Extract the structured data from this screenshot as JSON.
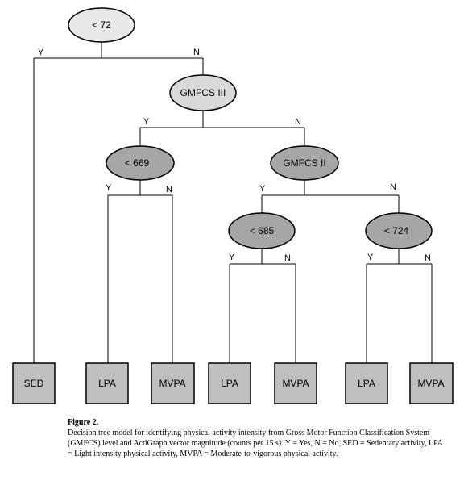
{
  "diagram": {
    "type": "decision-tree",
    "colors": {
      "root_fill": "#e8e8e8",
      "lvl1_fill": "#d9d9d9",
      "inner_fill": "#a6a6a6",
      "leaf_fill": "#bfbfbf",
      "stroke": "#000000"
    },
    "nodes": {
      "root": "< 72",
      "gmfcs3": "GMFCS III",
      "t669": "< 669",
      "gmfcs2": "GMFCS II",
      "t685": "< 685",
      "t724": "< 724"
    },
    "leaves": {
      "sed": "SED",
      "lpa1": "LPA",
      "mvpa1": "MVPA",
      "lpa2": "LPA",
      "mvpa2": "MVPA",
      "lpa3": "LPA",
      "mvpa3": "MVPA"
    },
    "branch_yes": "Y",
    "branch_no": "N"
  },
  "caption": {
    "title": "Figure 2.",
    "text": "Decision tree model for identifying physical activity intensity from Gross Motor Function Classification System (GMFCS) level and ActiGraph vector magnitude (counts per 15 s). Y = Yes, N = No, SED = Sedentary activity, LPA = Light intensity physical activity, MVPA = Moderate-to-vigorous physical activity."
  }
}
